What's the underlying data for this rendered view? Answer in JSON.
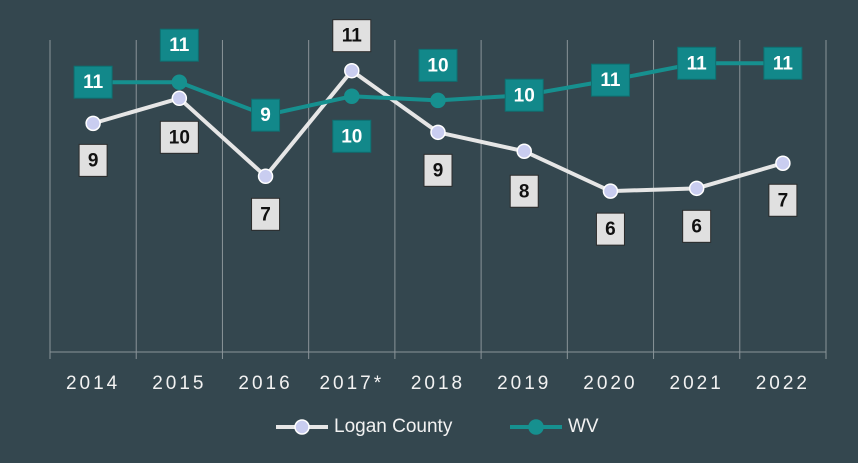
{
  "chart_data": {
    "type": "line",
    "categories": [
      "2014",
      "2015",
      "2016",
      "2017*",
      "2018",
      "2019",
      "2020",
      "2021",
      "2022"
    ],
    "ylim": [
      0,
      12.2
    ],
    "series": [
      {
        "name": "Logan County",
        "color": "#e6e6e6",
        "marker_color": "#c9cdf0",
        "values": [
          8.94,
          9.92,
          6.87,
          11.0,
          8.59,
          7.85,
          6.29,
          6.4,
          7.38
        ],
        "value_labels": [
          "9",
          "10",
          "7",
          "11",
          "9",
          "8",
          "6",
          "6",
          "7"
        ]
      },
      {
        "name": "WV",
        "color": "#16908f",
        "marker_color": "#16908f",
        "values": [
          10.55,
          10.55,
          9.26,
          10.0,
          9.84,
          10.04,
          10.63,
          11.29,
          11.29
        ],
        "value_labels": [
          "11",
          "11",
          "9",
          "10",
          "10",
          "10",
          "11",
          "11",
          "11"
        ]
      }
    ]
  }
}
